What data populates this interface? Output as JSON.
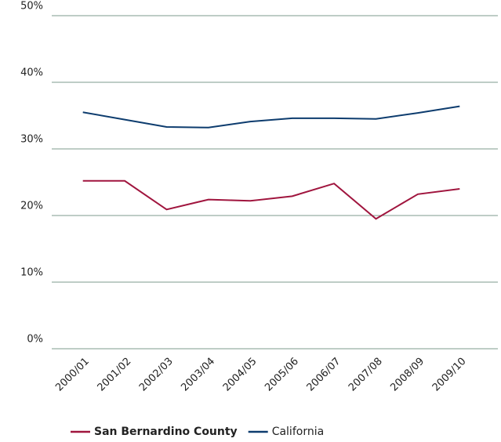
{
  "chart_data": {
    "type": "line",
    "categories": [
      "2000/01",
      "2001/02",
      "2002/03",
      "2003/04",
      "2004/05",
      "2005/06",
      "2006/07",
      "2007/08",
      "2008/09",
      "2009/10"
    ],
    "series": [
      {
        "name": "San Bernardino County",
        "color": "#a0153e",
        "values": [
          25.2,
          25.2,
          20.9,
          22.4,
          22.2,
          22.9,
          24.8,
          19.5,
          23.2,
          24.0
        ]
      },
      {
        "name": "California",
        "color": "#0d3c6e",
        "values": [
          35.5,
          34.4,
          33.3,
          33.2,
          34.1,
          34.6,
          34.6,
          34.5,
          35.4,
          36.4
        ]
      }
    ],
    "ylim": [
      0,
      50
    ],
    "yticks": [
      {
        "value": 0,
        "label": "0%"
      },
      {
        "value": 10,
        "label": "10%"
      },
      {
        "value": 20,
        "label": "20%"
      },
      {
        "value": 30,
        "label": "30%"
      },
      {
        "value": 40,
        "label": "40%"
      },
      {
        "value": 50,
        "label": "50%"
      }
    ],
    "grid": true
  }
}
